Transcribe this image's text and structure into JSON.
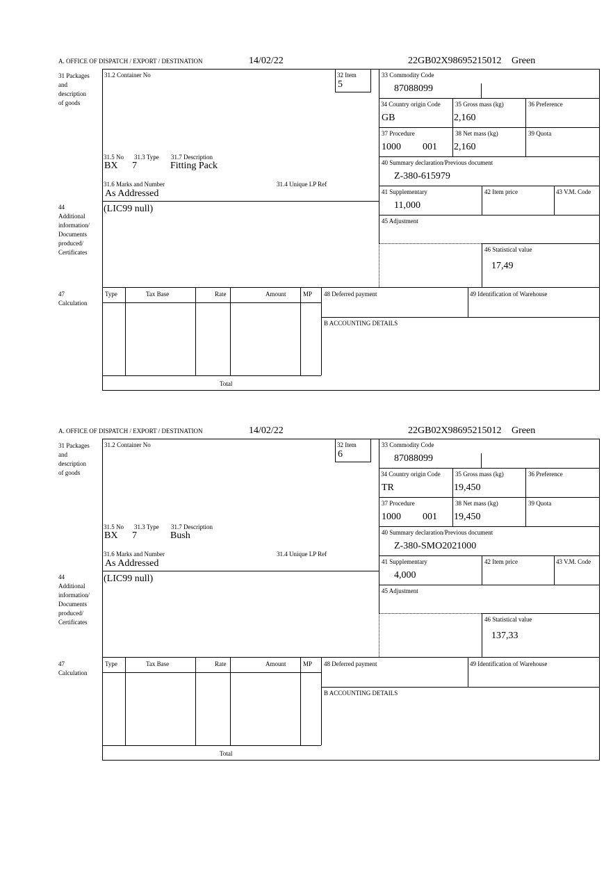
{
  "labels": {
    "office": "A.  OFFICE OF DISPATCH / EXPORT / DESTINATION",
    "packages": [
      "31 Packages",
      "and",
      "description",
      "of goods"
    ],
    "container": "31.2 Container No",
    "item": "32 Item",
    "no": "31.5 No",
    "type": "31.3 Type",
    "description": "31.7 Description",
    "marks": "31.6 Marks and Number",
    "unique_ref": "31.4 Unique LP Ref",
    "additional": [
      "44",
      "Additional",
      "information/",
      "Documents",
      "produced/",
      "Certificates"
    ],
    "commodity": "33 Commodity Code",
    "origin": "34 Country origin Code",
    "gross": "35 Gross mass (kg)",
    "preference": "36 Preference",
    "procedure": "37 Procedure",
    "net": "38 Net mass (kg)",
    "quota": "39 Quota",
    "summary": "40 Summary declaration/Previous document",
    "supplementary": "41 Supplementary",
    "item_price": "42 Item price",
    "vm_code": "43 V.M. Code",
    "adjustment": "45 Adjustment",
    "statistical": "46 Statistical value",
    "calc": [
      "47",
      "Calculation"
    ],
    "calc_cols": [
      "Type",
      "Tax Base",
      "Rate",
      "Amount",
      "MP"
    ],
    "total": "Total",
    "deferred": "48 Deferred payment",
    "warehouse": "49 Identification of Warehouse",
    "accounting": "B ACCOUNTING DETAILS"
  },
  "items": [
    {
      "date": "14/02/22",
      "reference": "22GB02X98695215012",
      "route": "Green",
      "item_no": "5",
      "pkg_no": "BX",
      "pkg_type": "7",
      "description": "Fitting Pack",
      "marks": "As Addressed",
      "additional_info": "(LIC99 null)",
      "commodity_code": "87088099",
      "origin": "GB",
      "gross_mass": "2,160",
      "procedure": "1000",
      "procedure_add": "001",
      "net_mass": "2,160",
      "previous_doc": "Z-380-615979",
      "supplementary": "11,000",
      "statistical_value": "17,49"
    },
    {
      "date": "14/02/22",
      "reference": "22GB02X98695215012",
      "route": "Green",
      "item_no": "6",
      "pkg_no": "BX",
      "pkg_type": "7",
      "description": "Bush",
      "marks": "As Addressed",
      "additional_info": "(LIC99 null)",
      "commodity_code": "87088099",
      "origin": "TR",
      "gross_mass": "19,450",
      "procedure": "1000",
      "procedure_add": "001",
      "net_mass": "19,450",
      "previous_doc": "Z-380-SMO2021000",
      "supplementary": "4,000",
      "statistical_value": "137,33"
    }
  ]
}
